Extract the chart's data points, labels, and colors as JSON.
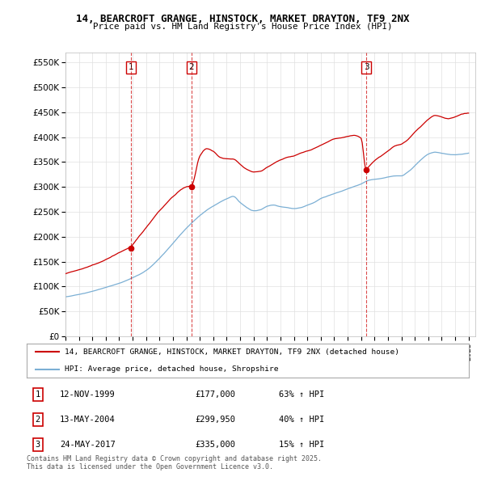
{
  "title_line1": "14, BEARCROFT GRANGE, HINSTOCK, MARKET DRAYTON, TF9 2NX",
  "title_line2": "Price paid vs. HM Land Registry's House Price Index (HPI)",
  "ylim": [
    0,
    570000
  ],
  "yticks": [
    0,
    50000,
    100000,
    150000,
    200000,
    250000,
    300000,
    350000,
    400000,
    450000,
    500000,
    550000
  ],
  "ytick_labels": [
    "£0",
    "£50K",
    "£100K",
    "£150K",
    "£200K",
    "£250K",
    "£300K",
    "£350K",
    "£400K",
    "£450K",
    "£500K",
    "£550K"
  ],
  "x_start_year": 1995,
  "x_end_year": 2025,
  "sale_dates": [
    "12-NOV-1999",
    "13-MAY-2004",
    "24-MAY-2017"
  ],
  "sale_years": [
    1999.87,
    2004.37,
    2017.38
  ],
  "sale_prices": [
    177000,
    299950,
    335000
  ],
  "sale_price_labels": [
    "£177,000",
    "£299,950",
    "£335,000"
  ],
  "sale_hpi_pct": [
    "63% ↑ HPI",
    "40% ↑ HPI",
    "15% ↑ HPI"
  ],
  "red_line_color": "#cc0000",
  "blue_line_color": "#7bafd4",
  "legend_label_red": "14, BEARCROFT GRANGE, HINSTOCK, MARKET DRAYTON, TF9 2NX (detached house)",
  "legend_label_blue": "HPI: Average price, detached house, Shropshire",
  "background_color": "#ffffff",
  "grid_color": "#e0e0e0",
  "footnote": "Contains HM Land Registry data © Crown copyright and database right 2025.\nThis data is licensed under the Open Government Licence v3.0.",
  "blue_key_points": [
    [
      1995.0,
      75000
    ],
    [
      1996.0,
      80000
    ],
    [
      1997.0,
      87000
    ],
    [
      1998.0,
      95000
    ],
    [
      1999.0,
      103000
    ],
    [
      2000.0,
      115000
    ],
    [
      2001.0,
      130000
    ],
    [
      2002.0,
      155000
    ],
    [
      2003.0,
      185000
    ],
    [
      2004.0,
      215000
    ],
    [
      2005.0,
      240000
    ],
    [
      2006.0,
      260000
    ],
    [
      2007.0,
      275000
    ],
    [
      2007.5,
      280000
    ],
    [
      2008.0,
      268000
    ],
    [
      2008.5,
      258000
    ],
    [
      2009.0,
      252000
    ],
    [
      2009.5,
      255000
    ],
    [
      2010.0,
      262000
    ],
    [
      2010.5,
      265000
    ],
    [
      2011.0,
      262000
    ],
    [
      2011.5,
      260000
    ],
    [
      2012.0,
      258000
    ],
    [
      2012.5,
      260000
    ],
    [
      2013.0,
      265000
    ],
    [
      2013.5,
      270000
    ],
    [
      2014.0,
      278000
    ],
    [
      2014.5,
      283000
    ],
    [
      2015.0,
      288000
    ],
    [
      2015.5,
      293000
    ],
    [
      2016.0,
      298000
    ],
    [
      2016.5,
      303000
    ],
    [
      2017.0,
      308000
    ],
    [
      2017.5,
      315000
    ],
    [
      2018.0,
      318000
    ],
    [
      2018.5,
      320000
    ],
    [
      2019.0,
      323000
    ],
    [
      2019.5,
      325000
    ],
    [
      2020.0,
      325000
    ],
    [
      2020.5,
      333000
    ],
    [
      2021.0,
      345000
    ],
    [
      2021.5,
      358000
    ],
    [
      2022.0,
      368000
    ],
    [
      2022.5,
      372000
    ],
    [
      2023.0,
      370000
    ],
    [
      2023.5,
      368000
    ],
    [
      2024.0,
      367000
    ],
    [
      2024.5,
      368000
    ],
    [
      2025.0,
      370000
    ]
  ],
  "red_key_points": [
    [
      1995.0,
      120000
    ],
    [
      1996.0,
      128000
    ],
    [
      1997.0,
      138000
    ],
    [
      1998.0,
      150000
    ],
    [
      1999.0,
      165000
    ],
    [
      1999.87,
      177000
    ],
    [
      2000.5,
      198000
    ],
    [
      2001.0,
      215000
    ],
    [
      2002.0,
      250000
    ],
    [
      2003.0,
      278000
    ],
    [
      2004.0,
      298000
    ],
    [
      2004.37,
      299950
    ],
    [
      2005.0,
      360000
    ],
    [
      2005.5,
      375000
    ],
    [
      2006.0,
      370000
    ],
    [
      2006.5,
      358000
    ],
    [
      2007.0,
      355000
    ],
    [
      2007.5,
      355000
    ],
    [
      2008.0,
      345000
    ],
    [
      2008.5,
      335000
    ],
    [
      2009.0,
      330000
    ],
    [
      2009.5,
      332000
    ],
    [
      2010.0,
      340000
    ],
    [
      2010.5,
      348000
    ],
    [
      2011.0,
      355000
    ],
    [
      2011.5,
      360000
    ],
    [
      2012.0,
      363000
    ],
    [
      2012.5,
      368000
    ],
    [
      2013.0,
      373000
    ],
    [
      2013.5,
      378000
    ],
    [
      2014.0,
      385000
    ],
    [
      2014.5,
      392000
    ],
    [
      2015.0,
      398000
    ],
    [
      2015.5,
      400000
    ],
    [
      2016.0,
      403000
    ],
    [
      2016.5,
      405000
    ],
    [
      2017.0,
      400000
    ],
    [
      2017.38,
      335000
    ],
    [
      2017.5,
      340000
    ],
    [
      2018.0,
      355000
    ],
    [
      2018.5,
      365000
    ],
    [
      2019.0,
      375000
    ],
    [
      2019.5,
      385000
    ],
    [
      2020.0,
      390000
    ],
    [
      2020.5,
      400000
    ],
    [
      2021.0,
      415000
    ],
    [
      2021.5,
      428000
    ],
    [
      2022.0,
      440000
    ],
    [
      2022.5,
      448000
    ],
    [
      2023.0,
      445000
    ],
    [
      2023.5,
      442000
    ],
    [
      2024.0,
      445000
    ],
    [
      2024.5,
      450000
    ],
    [
      2025.0,
      452000
    ]
  ]
}
